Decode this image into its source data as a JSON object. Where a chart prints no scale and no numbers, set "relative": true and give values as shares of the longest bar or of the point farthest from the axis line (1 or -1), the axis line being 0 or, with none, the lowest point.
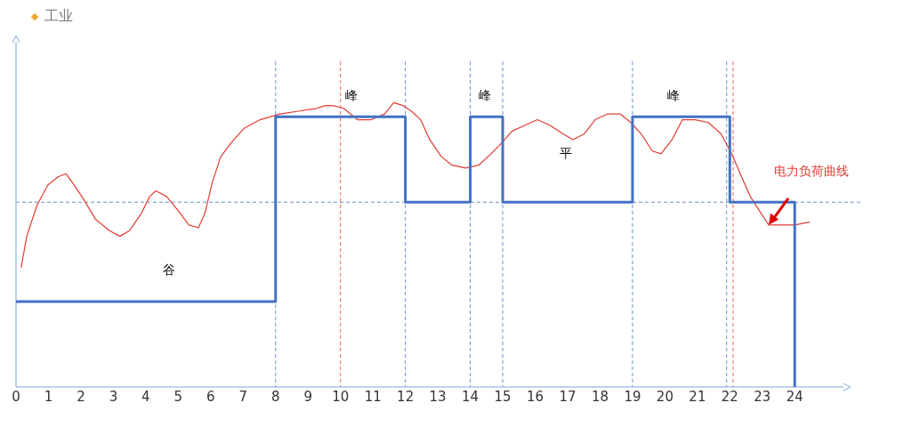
{
  "chart_data": {
    "type": "line",
    "title": "工业",
    "relative": true,
    "x": [
      0,
      8,
      12,
      14,
      15,
      19,
      22,
      24,
      24
    ],
    "xlim": [
      0,
      25.5
    ],
    "xticks": [
      0,
      1,
      2,
      3,
      4,
      5,
      6,
      7,
      8,
      9,
      10,
      11,
      12,
      13,
      14,
      15,
      16,
      17,
      18,
      19,
      20,
      21,
      22,
      23,
      24
    ],
    "tick_labels": "x",
    "grid": false,
    "legend": false,
    "marker": "none",
    "series": [
      {
        "type": "step",
        "color": "#4472c4",
        "values": [
          0.3,
          0.95,
          0.65,
          0.95,
          0.65,
          0.95,
          0.65,
          0.65,
          0
        ]
      },
      {
        "color": "#e03c31",
        "x": [
          0.16,
          0.33,
          0.65,
          0.98,
          1.31,
          1.54,
          1.73,
          2.03,
          2.45,
          2.88,
          3.2,
          3.5,
          3.86,
          4.12,
          4.31,
          4.64,
          5.0,
          5.33,
          5.62,
          5.82,
          6.05,
          6.31,
          6.64,
          7.03,
          7.52,
          8.14,
          8.7,
          9.26,
          9.54,
          9.76,
          10.1,
          10.52,
          10.94,
          11.36,
          11.64,
          11.92,
          12.19,
          12.47,
          12.75,
          13.11,
          13.44,
          13.86,
          14.26,
          14.64,
          14.9,
          15.29,
          15.68,
          16.07,
          16.46,
          16.86,
          17.17,
          17.51,
          17.85,
          18.22,
          18.63,
          18.95,
          19.27,
          19.61,
          19.88,
          20.22,
          20.54,
          20.94,
          21.34,
          21.73,
          22.06,
          22.32,
          22.63,
          22.91,
          23.2,
          23.58,
          24.0,
          24.46
        ],
        "values": [
          0.42,
          0.53,
          0.64,
          0.71,
          0.74,
          0.75,
          0.72,
          0.67,
          0.59,
          0.55,
          0.53,
          0.55,
          0.61,
          0.67,
          0.69,
          0.67,
          0.62,
          0.57,
          0.56,
          0.61,
          0.72,
          0.81,
          0.86,
          0.91,
          0.94,
          0.96,
          0.97,
          0.98,
          0.99,
          0.99,
          0.98,
          0.94,
          0.94,
          0.96,
          1.0,
          0.99,
          0.97,
          0.94,
          0.87,
          0.81,
          0.78,
          0.77,
          0.78,
          0.82,
          0.85,
          0.9,
          0.92,
          0.94,
          0.92,
          0.89,
          0.87,
          0.89,
          0.94,
          0.96,
          0.96,
          0.93,
          0.89,
          0.83,
          0.82,
          0.87,
          0.94,
          0.94,
          0.93,
          0.89,
          0.82,
          0.75,
          0.67,
          0.62,
          0.57,
          0.57,
          0.57,
          0.58
        ]
      }
    ],
    "ref_lines": [
      {
        "axis": "x",
        "value": 8,
        "color": "#4472c4",
        "line_style": "dashed"
      },
      {
        "axis": "x",
        "value": 12,
        "color": "#4472c4",
        "line_style": "dashed"
      },
      {
        "axis": "x",
        "value": 14,
        "color": "#4472c4",
        "line_style": "dashed"
      },
      {
        "axis": "x",
        "value": 15,
        "color": "#4472c4",
        "line_style": "dashed"
      },
      {
        "axis": "x",
        "value": 19,
        "color": "#4472c4",
        "line_style": "dashed"
      },
      {
        "axis": "x",
        "value": 21.9,
        "color": "#4472c4",
        "line_style": "dashed"
      },
      {
        "axis": "x",
        "value": 10,
        "color": "#e03c31",
        "line_style": "dashed"
      },
      {
        "axis": "x",
        "value": 22.1,
        "color": "#e03c31",
        "line_style": "dashed"
      },
      {
        "axis": "y",
        "value": 0.65,
        "color": "#4472c4",
        "line_style": "dashed"
      }
    ],
    "annotations": [
      "谷",
      "峰",
      "峰",
      "平",
      "峰",
      "电力负荷曲线"
    ]
  }
}
